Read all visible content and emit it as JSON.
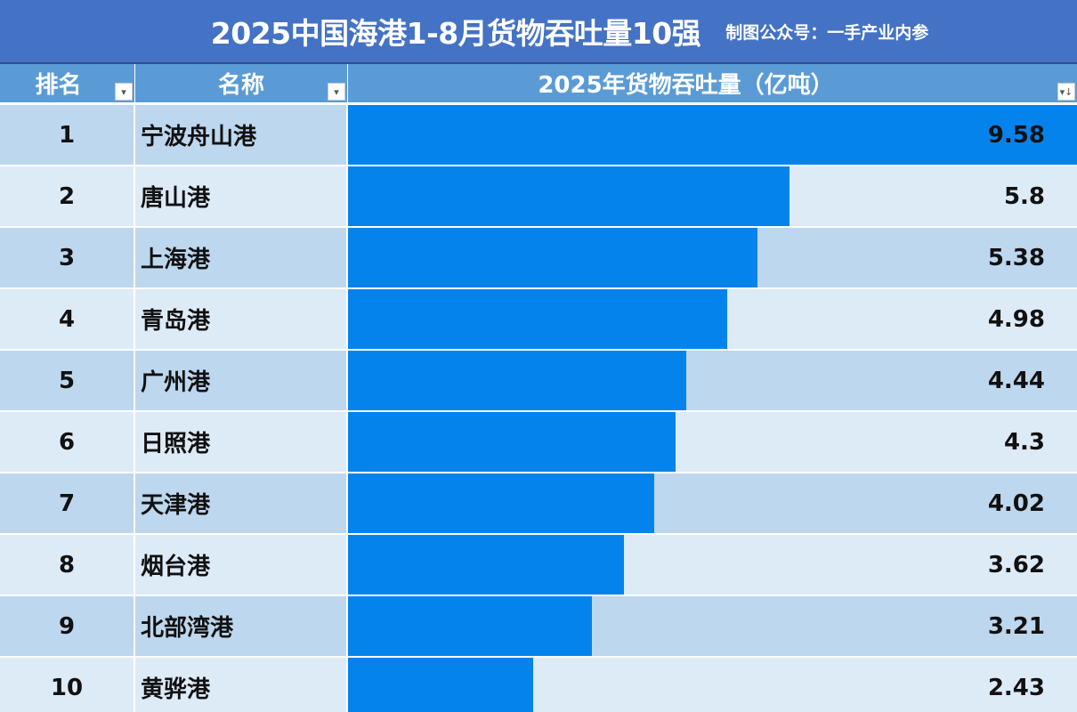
{
  "title": {
    "main": "2025中国海港1-8月货物吞吐量10强",
    "sub": "制图公众号：一手产业内参"
  },
  "header": {
    "col_rank": "排名",
    "col_name": "名称",
    "col_value": "2025年货物吞吐量（亿吨）",
    "filter_icon": "▾",
    "sort_icon": "▾↓"
  },
  "colors": {
    "title_bg": "#4472c4",
    "header_bg": "#5b9bd5",
    "bar": "#0583ec",
    "row_odd": "#bdd7ee",
    "row_even": "#ddebf7"
  },
  "rows": [
    {
      "rank": "1",
      "name": "宁波舟山港",
      "value": "9.58"
    },
    {
      "rank": "2",
      "name": "唐山港",
      "value": "5.8"
    },
    {
      "rank": "3",
      "name": "上海港",
      "value": "5.38"
    },
    {
      "rank": "4",
      "name": "青岛港",
      "value": "4.98"
    },
    {
      "rank": "5",
      "name": "广州港",
      "value": "4.44"
    },
    {
      "rank": "6",
      "name": "日照港",
      "value": "4.3"
    },
    {
      "rank": "7",
      "name": "天津港",
      "value": "4.02"
    },
    {
      "rank": "8",
      "name": "烟台港",
      "value": "3.62"
    },
    {
      "rank": "9",
      "name": "北部湾港",
      "value": "3.21"
    },
    {
      "rank": "10",
      "name": "黄骅港",
      "value": "2.43"
    }
  ],
  "chart_data": {
    "type": "bar",
    "title": "2025中国海港1-8月货物吞吐量10强",
    "subtitle": "制图公众号：一手产业内参",
    "orientation": "horizontal",
    "categories": [
      "宁波舟山港",
      "唐山港",
      "上海港",
      "青岛港",
      "广州港",
      "日照港",
      "天津港",
      "烟台港",
      "北部湾港",
      "黄骅港"
    ],
    "values": [
      9.58,
      5.8,
      5.38,
      4.98,
      4.44,
      4.3,
      4.02,
      3.62,
      3.21,
      2.43
    ],
    "xlabel": "",
    "ylabel": "2025年货物吞吐量（亿吨）",
    "xlim": [
      0,
      9.58
    ],
    "grid": false,
    "legend": "none"
  }
}
